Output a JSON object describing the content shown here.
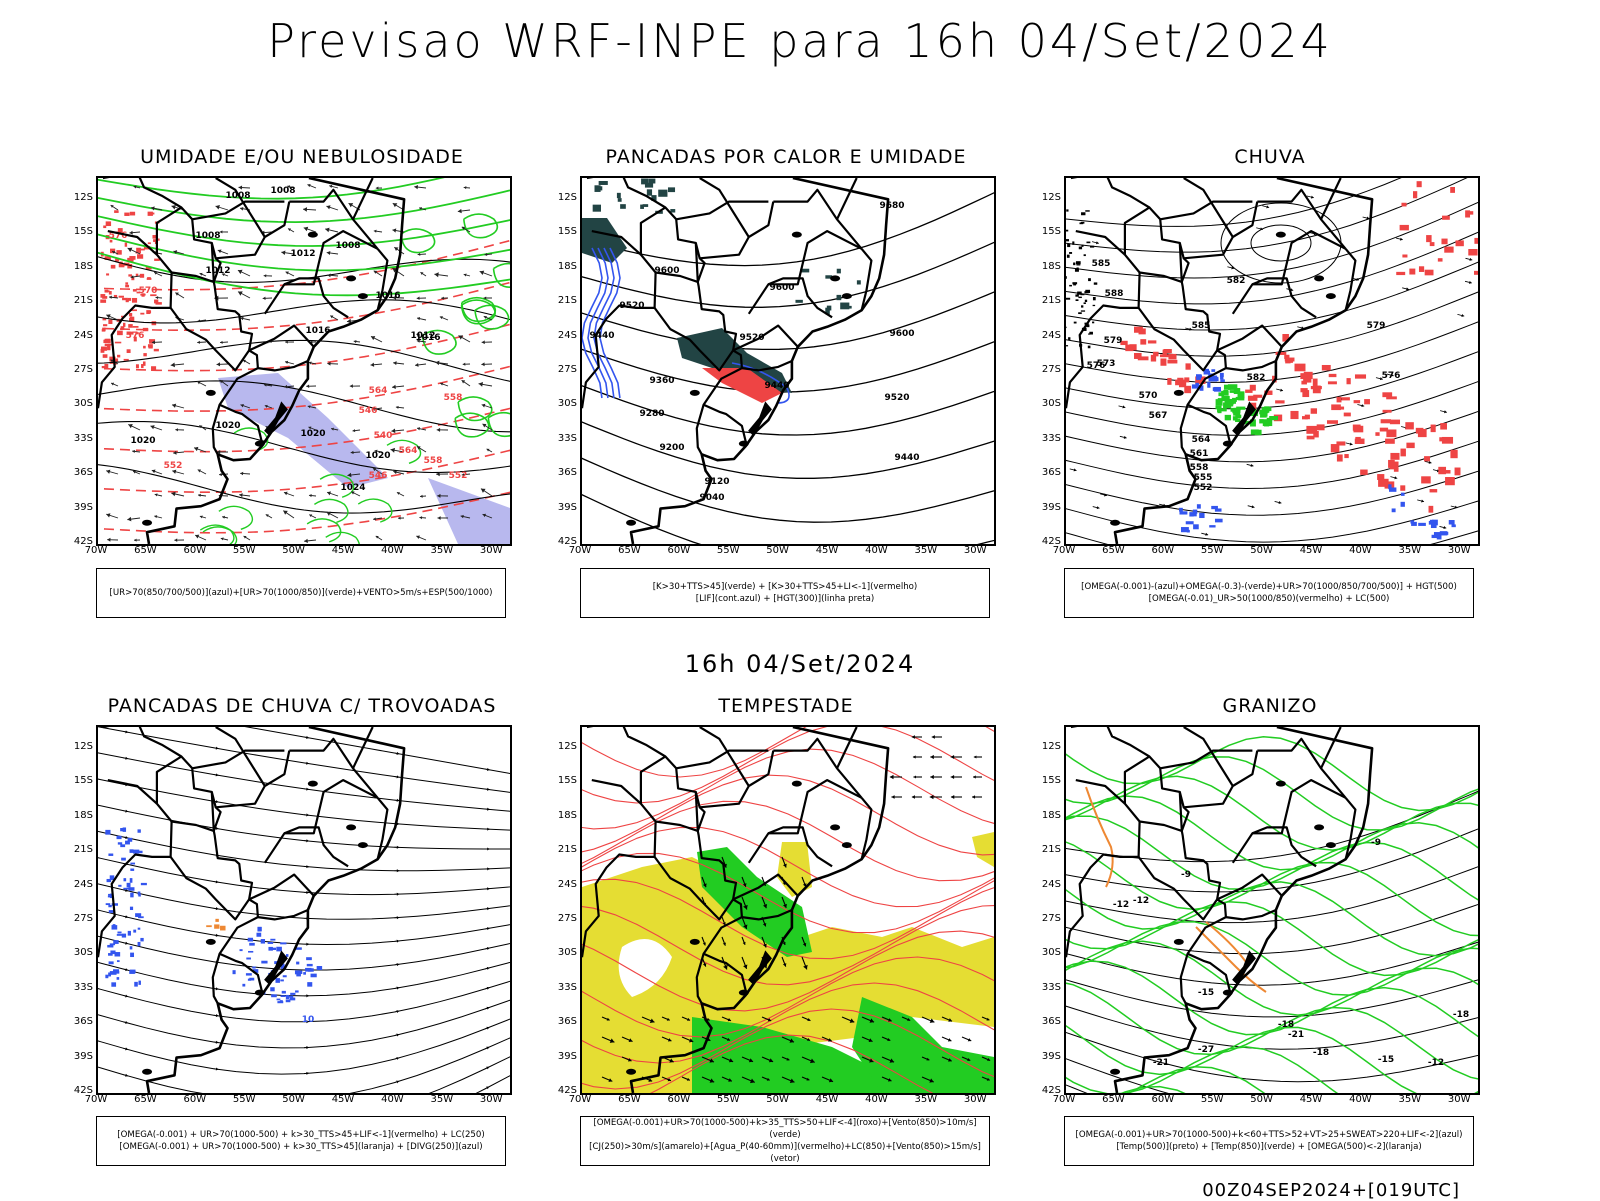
{
  "page": {
    "title": "Previsao WRF-INPE  para 16h 04/Set/2024",
    "middle_title": "16h 04/Set/2024",
    "footer": "00Z04SEP2024+[019UTC]"
  },
  "axes": {
    "lat_labels": [
      "12S",
      "15S",
      "18S",
      "21S",
      "24S",
      "27S",
      "30S",
      "33S",
      "36S",
      "39S",
      "42S"
    ],
    "lon_labels": [
      "70W",
      "65W",
      "60W",
      "55W",
      "50W",
      "45W",
      "40W",
      "35W",
      "30W"
    ]
  },
  "colors": {
    "red": "#ee4444",
    "green": "#22cc22",
    "blue": "#3355ee",
    "lavender": "#b8b8ee",
    "teal": "#224444",
    "yellow": "#e5dd33",
    "orange": "#ee8833",
    "black": "#000000"
  },
  "panels": [
    {
      "id": "umidade",
      "title": "UMIDADE E/OU NEBULOSIDADE",
      "legend": [
        "[UR>70(850/700/500)](azul)+[UR>70(1000/850)](verde)+VENTO>5m/s+ESP(500/1000)"
      ],
      "contour_labels": [
        "1008",
        "1008",
        "1008",
        "1012",
        "1012",
        "1008",
        "1016",
        "1012",
        "1016",
        "1020",
        "1020",
        "1020",
        "1024",
        "1020",
        "1016",
        "576",
        "570",
        "564",
        "558",
        "552",
        "546",
        "540",
        "564",
        "558",
        "552",
        "546",
        "576"
      ]
    },
    {
      "id": "pancadas-calor",
      "title": "PANCADAS POR CALOR E UMIDADE",
      "legend": [
        "[K>30+TTS>45](verde) + [K>30+TTS>45+LI<-1](vermelho)",
        "[LIF](cont.azul) + [HGT(300)](linha preta)"
      ],
      "contour_labels": [
        "9680",
        "9600",
        "9600",
        "9520",
        "9520",
        "9440",
        "9440",
        "9360",
        "9280",
        "9200",
        "9120",
        "9040",
        "9600",
        "9520",
        "9440"
      ]
    },
    {
      "id": "chuva",
      "title": "CHUVA",
      "legend": [
        "[OMEGA(-0.001)-(azul)+OMEGA(-0.3)-(verde)+UR>70(1000/850/700/500)] + HGT(500)",
        "[OMEGA(-0.01)_UR>50(1000/850)(vermelho) + LC(500)"
      ],
      "contour_labels": [
        "585",
        "588",
        "582",
        "579",
        "576",
        "573",
        "570",
        "567",
        "564",
        "561",
        "558",
        "555",
        "552",
        "579",
        "576",
        "585",
        "582"
      ]
    },
    {
      "id": "trovoadas",
      "title": "PANCADAS DE CHUVA C/ TROVOADAS",
      "legend": [
        "[OMEGA(-0.001) + UR>70(1000-500) + k>30_TTS>45+LIF<-1](vermelho) + LC(250)",
        "[OMEGA(-0.001) + UR>70(1000-500) + k>30_TTS>45](laranja) + [DIVG(250)](azul)"
      ],
      "contour_labels": [
        "10"
      ]
    },
    {
      "id": "tempestade",
      "title": "TEMPESTADE",
      "legend": [
        "[OMEGA(-0.001)+UR>70(1000-500)+k>35_TTS>50+LIF<-4](roxo)+[Vento(850)>10m/s](verde)",
        "[CJ(250)>30m/s](amarelo)+[Agua_P(40-60mm)](vermelho)+LC(850)+[Vento(850)>15m/s](vetor)"
      ],
      "contour_labels": []
    },
    {
      "id": "granizo",
      "title": "GRANIZO",
      "legend": [
        "[OMEGA(-0.001)+UR>70(1000-500)+k<60+TTS>52+VT>25+SWEAT>220+LIF<-2](azul)",
        "[Temp(500)](preto) + [Temp(850)](verde) + [OMEGA(500)<-2](laranja)"
      ],
      "contour_labels": [
        "-12",
        "-9",
        "-12",
        "-15",
        "-18",
        "-21",
        "-27",
        "-18",
        "-15",
        "-12",
        "-9",
        "-21",
        "-18"
      ]
    }
  ]
}
